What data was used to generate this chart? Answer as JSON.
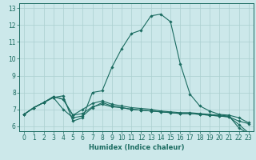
{
  "xlabel": "Humidex (Indice chaleur)",
  "bg_color": "#cce8ea",
  "line_color": "#1a6b60",
  "grid_color": "#aacfcf",
  "spine_color": "#1a6b60",
  "xlim": [
    -0.5,
    23.5
  ],
  "ylim": [
    5.7,
    13.3
  ],
  "xticks": [
    0,
    1,
    2,
    3,
    4,
    5,
    6,
    7,
    8,
    9,
    10,
    11,
    12,
    13,
    14,
    15,
    16,
    17,
    18,
    19,
    20,
    21,
    22,
    23
  ],
  "yticks": [
    6,
    7,
    8,
    9,
    10,
    11,
    12,
    13
  ],
  "series": [
    [
      6.7,
      7.1,
      7.4,
      7.7,
      7.8,
      6.3,
      6.5,
      8.0,
      8.1,
      9.5,
      10.6,
      11.5,
      11.7,
      12.55,
      12.65,
      12.2,
      9.7,
      7.9,
      7.2,
      6.9,
      6.7,
      6.65,
      6.5,
      6.2
    ],
    [
      6.7,
      7.1,
      7.4,
      7.7,
      7.0,
      6.5,
      6.6,
      7.1,
      7.4,
      7.2,
      7.1,
      7.0,
      6.95,
      6.9,
      6.85,
      6.8,
      6.75,
      6.75,
      6.7,
      6.65,
      6.6,
      6.55,
      6.1,
      5.6
    ],
    [
      6.7,
      7.1,
      7.4,
      7.75,
      7.6,
      6.65,
      7.0,
      7.35,
      7.5,
      7.3,
      7.2,
      7.1,
      7.05,
      7.0,
      6.9,
      6.85,
      6.8,
      6.8,
      6.75,
      6.7,
      6.65,
      6.6,
      5.9,
      5.55
    ],
    [
      6.7,
      7.1,
      7.4,
      7.75,
      7.6,
      6.65,
      6.75,
      7.15,
      7.3,
      7.15,
      7.1,
      7.0,
      6.95,
      6.9,
      6.85,
      6.8,
      6.75,
      6.75,
      6.7,
      6.65,
      6.6,
      6.55,
      6.3,
      6.15
    ]
  ],
  "tick_fontsize": 5.5,
  "xlabel_fontsize": 6.0,
  "xlabel_fontweight": "bold"
}
